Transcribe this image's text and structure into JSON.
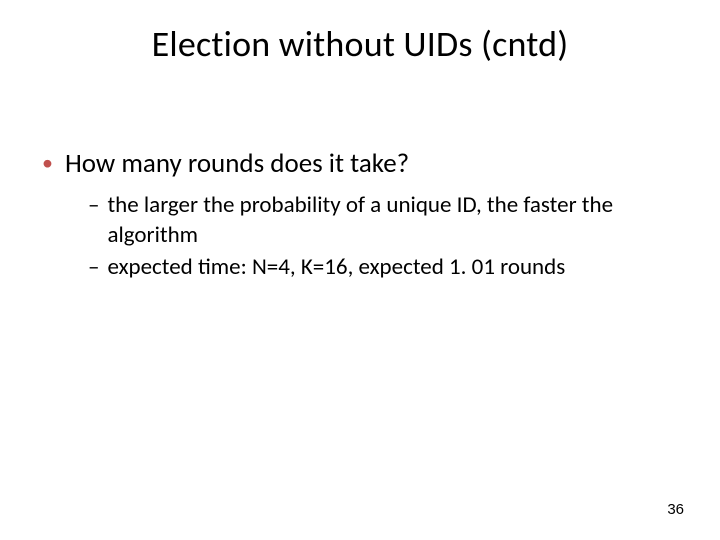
{
  "slide": {
    "title": "Election without UIDs (cntd)",
    "bullets": {
      "level1": {
        "text": "How many rounds does it take?",
        "marker_color": "#c0504d"
      },
      "level2": [
        {
          "text": "the larger the probability of a unique ID, the faster the algorithm"
        },
        {
          "text": "expected time: N=4, K=16, expected 1. 01 rounds"
        }
      ]
    },
    "page_number": "36",
    "style": {
      "background_color": "#ffffff",
      "title_fontsize": 36,
      "l1_fontsize": 27,
      "l2_fontsize": 23,
      "text_color": "#000000",
      "bullet_color": "#c0504d",
      "font_family": "Calibri"
    }
  }
}
